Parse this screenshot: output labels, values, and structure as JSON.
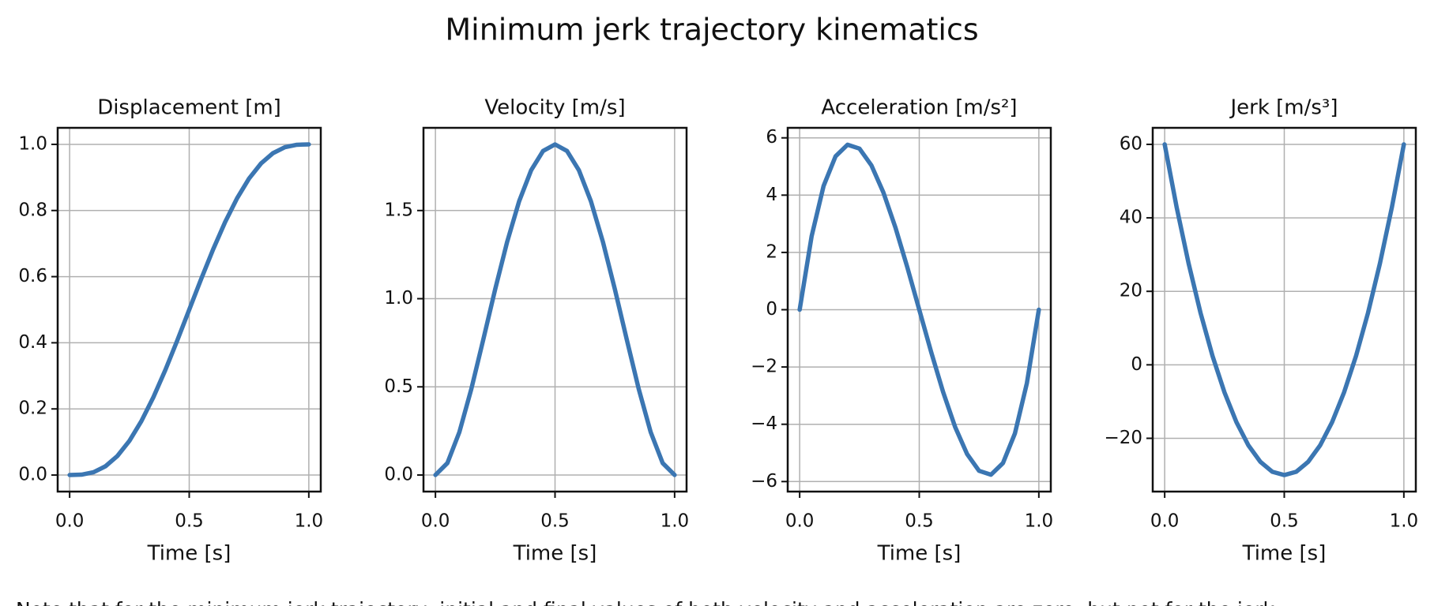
{
  "title": "Minimum jerk trajectory kinematics",
  "note": "Note that for the minimum jerk trajectory, initial and final values of both velocity and acceleration are zero, but not for the jerk.",
  "chart_data": [
    {
      "type": "line",
      "title": "Displacement [m]",
      "xlabel": "Time [s]",
      "color": "#3b76b2",
      "grid": true,
      "x": [
        0,
        0.05,
        0.1,
        0.15,
        0.2,
        0.25,
        0.3,
        0.35,
        0.4,
        0.45,
        0.5,
        0.55,
        0.6,
        0.65,
        0.7,
        0.75,
        0.8,
        0.85,
        0.9,
        0.95,
        1
      ],
      "values": [
        0,
        0.00116,
        0.00856,
        0.02661,
        0.05792,
        0.10352,
        0.16308,
        0.23517,
        0.31744,
        0.40687,
        0.5,
        0.59313,
        0.68256,
        0.76483,
        0.83692,
        0.89648,
        0.94208,
        0.97339,
        0.99144,
        0.99884,
        1
      ],
      "xlim": [
        -0.05,
        1.05
      ],
      "ylim": [
        -0.05,
        1.05
      ],
      "xticks": [
        {
          "value": 0,
          "label": "0.0"
        },
        {
          "value": 0.5,
          "label": "0.5"
        },
        {
          "value": 1,
          "label": "1.0"
        }
      ],
      "yticks": [
        {
          "value": 0,
          "label": "0.0"
        },
        {
          "value": 0.2,
          "label": "0.2"
        },
        {
          "value": 0.4,
          "label": "0.4"
        },
        {
          "value": 0.6,
          "label": "0.6"
        },
        {
          "value": 0.8,
          "label": "0.8"
        },
        {
          "value": 1,
          "label": "1.0"
        }
      ]
    },
    {
      "type": "line",
      "title": "Velocity [m/s]",
      "xlabel": "Time [s]",
      "color": "#3b76b2",
      "grid": true,
      "x": [
        0,
        0.05,
        0.1,
        0.15,
        0.2,
        0.25,
        0.3,
        0.35,
        0.4,
        0.45,
        0.5,
        0.55,
        0.6,
        0.65,
        0.7,
        0.75,
        0.8,
        0.85,
        0.9,
        0.95,
        1
      ],
      "values": [
        0,
        0.06769,
        0.243,
        0.48769,
        0.768,
        1.05469,
        1.323,
        1.55269,
        1.728,
        1.83769,
        1.875,
        1.83769,
        1.728,
        1.55269,
        1.323,
        1.05469,
        0.768,
        0.48769,
        0.243,
        0.06769,
        0
      ],
      "xlim": [
        -0.05,
        1.05
      ],
      "ylim": [
        -0.094,
        1.969
      ],
      "xticks": [
        {
          "value": 0,
          "label": "0.0"
        },
        {
          "value": 0.5,
          "label": "0.5"
        },
        {
          "value": 1,
          "label": "1.0"
        }
      ],
      "yticks": [
        {
          "value": 0,
          "label": "0.0"
        },
        {
          "value": 0.5,
          "label": "0.5"
        },
        {
          "value": 1,
          "label": "1.0"
        },
        {
          "value": 1.5,
          "label": "1.5"
        }
      ]
    },
    {
      "type": "line",
      "title": "Acceleration [m/s²]",
      "xlabel": "Time [s]",
      "color": "#3b76b2",
      "grid": true,
      "x": [
        0,
        0.05,
        0.1,
        0.15,
        0.2,
        0.25,
        0.3,
        0.35,
        0.4,
        0.45,
        0.5,
        0.55,
        0.6,
        0.65,
        0.7,
        0.75,
        0.8,
        0.85,
        0.9,
        0.95,
        1
      ],
      "values": [
        0,
        2.565,
        4.32,
        5.355,
        5.76,
        5.625,
        5.04,
        4.095,
        2.88,
        1.485,
        0,
        -1.485,
        -2.88,
        -4.095,
        -5.04,
        -5.625,
        -5.76,
        -5.355,
        -4.32,
        -2.565,
        0
      ],
      "xlim": [
        -0.05,
        1.05
      ],
      "ylim": [
        -6.35,
        6.35
      ],
      "xticks": [
        {
          "value": 0,
          "label": "0.0"
        },
        {
          "value": 0.5,
          "label": "0.5"
        },
        {
          "value": 1,
          "label": "1.0"
        }
      ],
      "yticks": [
        {
          "value": -6,
          "label": "−6"
        },
        {
          "value": -4,
          "label": "−4"
        },
        {
          "value": -2,
          "label": "−2"
        },
        0,
        2,
        4,
        6
      ]
    },
    {
      "type": "line",
      "title": "Jerk [m/s³]",
      "xlabel": "Time [s]",
      "color": "#3b76b2",
      "grid": true,
      "x": [
        0,
        0.05,
        0.1,
        0.15,
        0.2,
        0.25,
        0.3,
        0.35,
        0.4,
        0.45,
        0.5,
        0.55,
        0.6,
        0.65,
        0.7,
        0.75,
        0.8,
        0.85,
        0.9,
        0.95,
        1
      ],
      "values": [
        60,
        42.9,
        27.6,
        14.1,
        2.4,
        -7.5,
        -15.6,
        -21.9,
        -26.4,
        -29.1,
        -30,
        -29.1,
        -26.4,
        -21.9,
        -15.6,
        -7.5,
        2.4,
        14.1,
        27.6,
        42.9,
        60
      ],
      "xlim": [
        -0.05,
        1.05
      ],
      "ylim": [
        -34.5,
        64.5
      ],
      "xticks": [
        {
          "value": 0,
          "label": "0.0"
        },
        {
          "value": 0.5,
          "label": "0.5"
        },
        {
          "value": 1,
          "label": "1.0"
        }
      ],
      "yticks": [
        {
          "value": -20,
          "label": "−20"
        },
        0,
        20,
        40,
        60
      ]
    }
  ]
}
